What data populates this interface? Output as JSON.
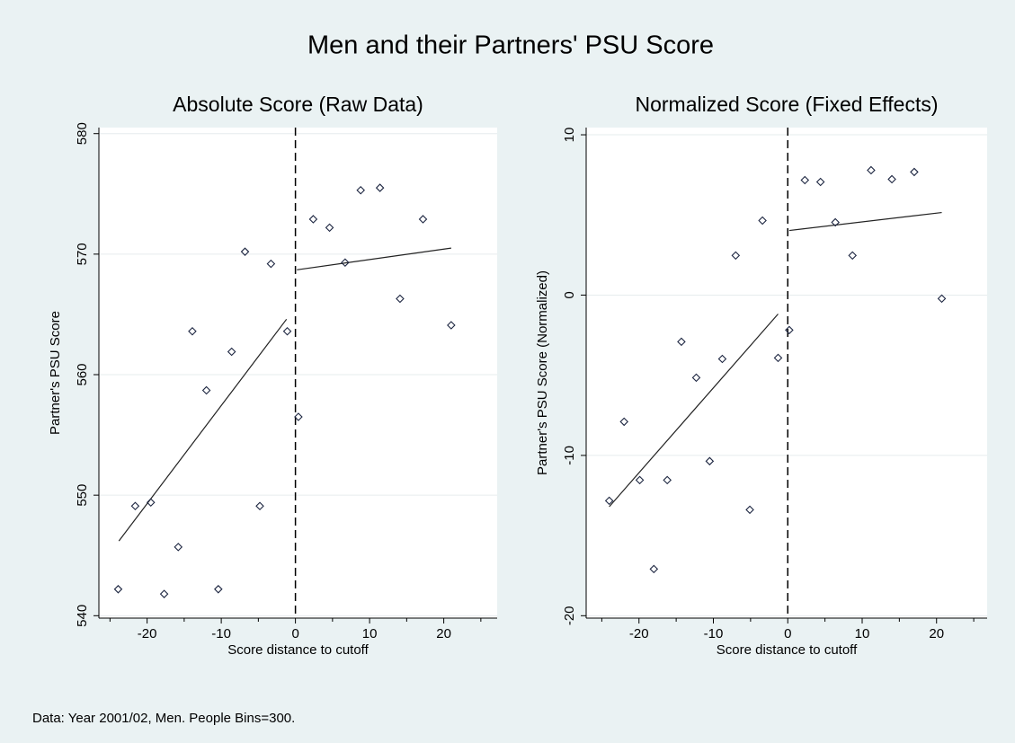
{
  "title": "Men and their Partners' PSU Score",
  "note": "Data: Year 2001/02, Men. People Bins=300.",
  "chart_data": [
    {
      "type": "scatter",
      "title": "Absolute Score (Raw Data)",
      "x_label": "Score distance to cutoff",
      "y_label": "Partner's PSU Score",
      "x": [
        -23.9,
        -21.6,
        -19.5,
        -17.7,
        -15.8,
        -13.9,
        -12.0,
        -10.4,
        -8.6,
        -6.8,
        -4.8,
        -3.3,
        -1.1,
        0.4,
        2.4,
        4.6,
        6.7,
        8.8,
        11.4,
        14.1,
        17.2,
        21.0
      ],
      "values": [
        542.2,
        549.1,
        549.4,
        541.8,
        545.7,
        563.6,
        558.7,
        542.2,
        561.9,
        570.2,
        549.1,
        569.2,
        563.6,
        556.5,
        572.9,
        572.2,
        569.3,
        575.3,
        575.5,
        566.3,
        572.9,
        564.1
      ],
      "fit_lines": [
        {
          "x": [
            -23.8,
            -1.2
          ],
          "values": [
            546.2,
            564.6
          ]
        },
        {
          "x": [
            0.2,
            21.0
          ],
          "values": [
            568.7,
            570.5
          ]
        }
      ],
      "cutoff": 0,
      "color": "#1c2540",
      "xlim": [
        -26.5,
        27.2
      ],
      "xticks": [
        -20,
        -10,
        0,
        10,
        20
      ],
      "xminorticks": [
        -25,
        -15,
        -5,
        5,
        15,
        25
      ],
      "ylim": [
        539.8,
        580.5
      ],
      "yticks": [
        540,
        550,
        560,
        570,
        580
      ],
      "grid": true
    },
    {
      "type": "scatter",
      "title": "Normalized Score (Fixed Effects)",
      "x_label": "Score distance to cutoff",
      "y_label": "Partner's PSU Score (Normalized)",
      "x": [
        -24.0,
        -22.0,
        -19.9,
        -18.0,
        -16.2,
        -14.3,
        -12.3,
        -10.5,
        -8.8,
        -7.0,
        -5.1,
        -3.4,
        -1.3,
        0.2,
        2.3,
        4.4,
        6.4,
        8.7,
        11.2,
        14.0,
        17.0,
        20.7
      ],
      "values": [
        -12.83,
        -7.9,
        -11.54,
        -17.09,
        -11.54,
        -2.91,
        -5.15,
        -10.36,
        -3.98,
        2.47,
        -13.39,
        4.65,
        -3.92,
        -2.18,
        7.17,
        7.06,
        4.54,
        2.47,
        7.79,
        7.23,
        7.68,
        -0.22
      ],
      "fit_lines": [
        {
          "x": [
            -24.0,
            -1.3
          ],
          "values": [
            -13.2,
            -1.18
          ]
        },
        {
          "x": [
            0.2,
            20.7
          ],
          "values": [
            4.03,
            5.15
          ]
        }
      ],
      "cutoff": 0,
      "color": "#1c2540",
      "xlim": [
        -27.1,
        26.8
      ],
      "xticks": [
        -20,
        -10,
        0,
        10,
        20
      ],
      "xminorticks": [
        -25,
        -15,
        -5,
        5,
        15,
        25
      ],
      "ylim": [
        -20.15,
        10.45
      ],
      "yticks": [
        -20,
        -10,
        0,
        10
      ],
      "grid": true
    }
  ]
}
